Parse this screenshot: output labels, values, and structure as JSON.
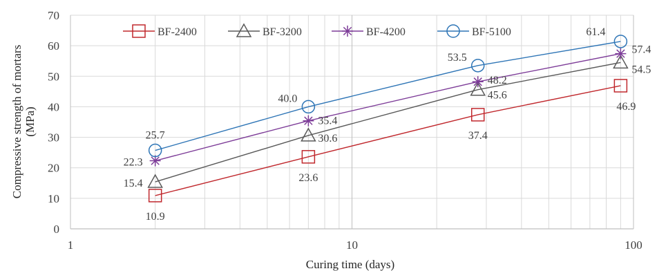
{
  "chart_data": {
    "type": "line",
    "title": "",
    "xlabel": "Curing time (days)",
    "ylabel_lines": [
      "Compressive strength of mortars",
      "(MPa)"
    ],
    "x_scale": "log",
    "xlim": [
      1,
      100
    ],
    "ylim": [
      0,
      70
    ],
    "x_ticks": [
      1,
      10,
      100
    ],
    "y_ticks": [
      0,
      10,
      20,
      30,
      40,
      50,
      60,
      70
    ],
    "grid": true,
    "legend_position": "top",
    "x": [
      2,
      7,
      28,
      90
    ],
    "series": [
      {
        "name": "BF-2400",
        "color": "#c0282d",
        "marker": "square",
        "values": [
          10.9,
          23.6,
          37.4,
          46.9
        ],
        "labels": [
          "10.9",
          "23.6",
          "37.4",
          "46.9"
        ]
      },
      {
        "name": "BF-3200",
        "color": "#595959",
        "marker": "triangle",
        "values": [
          15.4,
          30.6,
          45.6,
          54.5
        ],
        "labels": [
          "15.4",
          "30.6",
          "45.6",
          "54.5"
        ]
      },
      {
        "name": "BF-4200",
        "color": "#7d3c98",
        "marker": "star",
        "values": [
          22.3,
          35.4,
          48.2,
          57.4
        ],
        "labels": [
          "22.3",
          "35.4",
          "48.2",
          "57.4"
        ]
      },
      {
        "name": "BF-5100",
        "color": "#2e75b6",
        "marker": "circle",
        "values": [
          25.7,
          40.0,
          53.5,
          61.4
        ],
        "labels": [
          "25.7",
          "40.0",
          "53.5",
          "61.4"
        ]
      }
    ]
  }
}
